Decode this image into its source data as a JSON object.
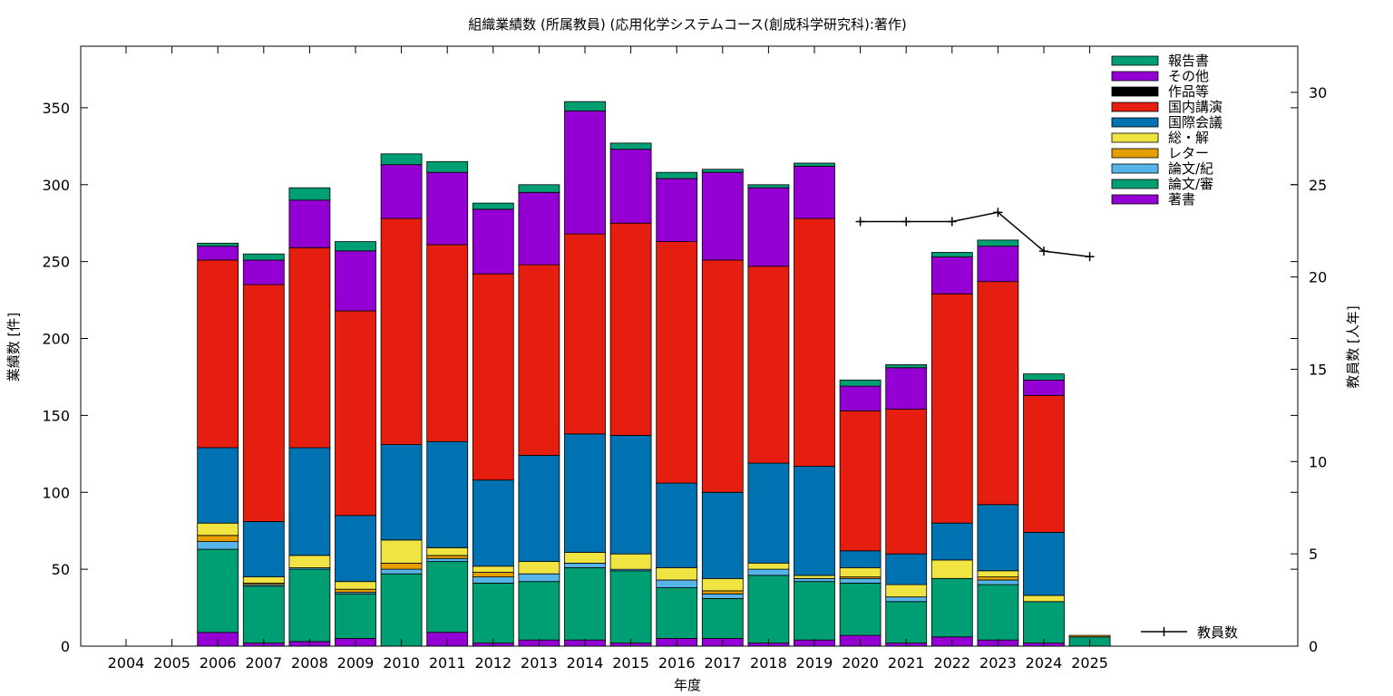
{
  "chart_data": {
    "type": "bar",
    "stacked": true,
    "title": "組織業績数 (所属教員) (応用化学システムコース(創成科学研究科):著作)",
    "xlabel": "年度",
    "ylabel": "業績数 [件]",
    "y2label": "教員数 [人年]",
    "ylim": [
      0,
      390
    ],
    "y2lim": [
      0,
      32.5
    ],
    "yticks": [
      0,
      50,
      100,
      150,
      200,
      250,
      300,
      350
    ],
    "y2ticks": [
      0,
      5,
      10,
      15,
      20,
      25,
      30
    ],
    "grid": false,
    "legend_position": "top-right",
    "categories": [
      "2004",
      "2005",
      "2006",
      "2007",
      "2008",
      "2009",
      "2010",
      "2011",
      "2012",
      "2013",
      "2014",
      "2015",
      "2016",
      "2017",
      "2018",
      "2019",
      "2020",
      "2021",
      "2022",
      "2023",
      "2024",
      "2025"
    ],
    "series": [
      {
        "name": "著書",
        "color": "#9400d3",
        "values": [
          0,
          0,
          9,
          2,
          3,
          5,
          0,
          9,
          2,
          4,
          4,
          2,
          5,
          5,
          2,
          4,
          7,
          2,
          6,
          4,
          2,
          0
        ]
      },
      {
        "name": "論文/審",
        "color": "#009e73",
        "values": [
          0,
          0,
          54,
          37,
          47,
          29,
          47,
          46,
          39,
          38,
          47,
          47,
          33,
          26,
          44,
          38,
          34,
          27,
          38,
          36,
          27,
          6
        ]
      },
      {
        "name": "論文/紀",
        "color": "#56b4e9",
        "values": [
          0,
          0,
          5,
          1,
          1,
          1,
          3,
          2,
          4,
          5,
          3,
          1,
          5,
          3,
          4,
          2,
          3,
          3,
          0,
          3,
          0,
          0
        ]
      },
      {
        "name": "レター",
        "color": "#e69f00",
        "values": [
          0,
          0,
          4,
          1,
          0,
          2,
          4,
          2,
          3,
          0,
          0,
          0,
          0,
          2,
          0,
          0,
          1,
          0,
          0,
          2,
          0,
          1
        ]
      },
      {
        "name": "総・解",
        "color": "#f0e442",
        "values": [
          0,
          0,
          8,
          4,
          8,
          5,
          15,
          5,
          4,
          8,
          7,
          10,
          8,
          8,
          4,
          2,
          6,
          8,
          12,
          4,
          4,
          0
        ]
      },
      {
        "name": "国際会議",
        "color": "#0072b2",
        "values": [
          0,
          0,
          49,
          36,
          70,
          43,
          62,
          69,
          56,
          69,
          77,
          77,
          55,
          56,
          65,
          71,
          11,
          20,
          24,
          43,
          41,
          0
        ]
      },
      {
        "name": "国内講演",
        "color": "#e51e10",
        "values": [
          0,
          0,
          122,
          154,
          130,
          133,
          147,
          128,
          134,
          124,
          130,
          138,
          157,
          151,
          128,
          161,
          91,
          94,
          149,
          145,
          89,
          0
        ]
      },
      {
        "name": "作品等",
        "color": "#000000",
        "values": [
          0,
          0,
          0,
          0,
          0,
          0,
          0,
          0,
          0,
          0,
          0,
          0,
          0,
          0,
          0,
          0,
          0,
          0,
          0,
          0,
          0,
          0
        ]
      },
      {
        "name": "その他",
        "color": "#9400d3",
        "values": [
          0,
          0,
          9,
          16,
          31,
          39,
          35,
          47,
          42,
          47,
          80,
          48,
          41,
          57,
          51,
          34,
          16,
          27,
          24,
          23,
          10,
          0
        ]
      },
      {
        "name": "報告書",
        "color": "#009e73",
        "values": [
          0,
          0,
          2,
          4,
          8,
          6,
          7,
          7,
          4,
          5,
          6,
          4,
          4,
          2,
          2,
          2,
          4,
          2,
          3,
          4,
          4,
          0
        ]
      }
    ],
    "line_series": {
      "name": "教員数",
      "color": "#000000",
      "axis": "y2",
      "x": [
        "2020",
        "2021",
        "2022",
        "2023",
        "2024",
        "2025"
      ],
      "values": [
        23.0,
        23.0,
        23.0,
        23.5,
        21.4,
        21.1
      ]
    }
  }
}
